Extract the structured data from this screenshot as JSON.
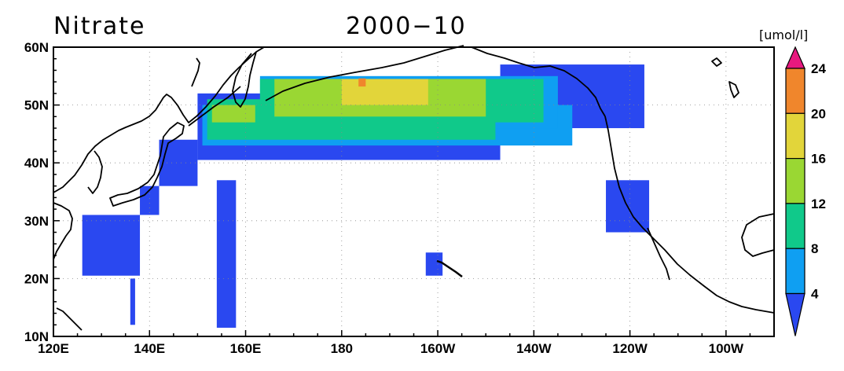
{
  "title": {
    "variable": "Nitrate",
    "date": "2000−10",
    "unit": "[umol/l]"
  },
  "colors": {
    "level_0_4": "#2a48f0",
    "level_4_8": "#0f9ff2",
    "level_8_12": "#10c98a",
    "level_12_16": "#9ad733",
    "level_16_20": "#e2d53a",
    "level_20_24": "#f0862c",
    "level_24_up": "#e8197f",
    "coastline": "#000000"
  },
  "chart_data": {
    "type": "heatmap",
    "title": "Nitrate 2000−10",
    "colorbar_label": "[umol/l]",
    "colorbar_ticks": [
      "4",
      "8",
      "12",
      "16",
      "20",
      "24"
    ],
    "colorbar_levels": [
      4,
      8,
      12,
      16,
      20,
      24
    ],
    "x_ticks": [
      "120E",
      "140E",
      "160E",
      "180",
      "160W",
      "140W",
      "120W",
      "100W"
    ],
    "y_ticks": [
      "10N",
      "20N",
      "30N",
      "40N",
      "50N",
      "60N"
    ],
    "lon_range": [
      120,
      270
    ],
    "lat_range": [
      10,
      60
    ],
    "lon_ticks": [
      120,
      140,
      160,
      180,
      200,
      220,
      240,
      260
    ],
    "lat_ticks": [
      10,
      20,
      30,
      40,
      50,
      60
    ],
    "grid": true,
    "regions": [
      {
        "level": 1,
        "lon": [
          150,
          213
        ],
        "lat": [
          40.5,
          52
        ]
      },
      {
        "level": 1,
        "lon": [
          213,
          243
        ],
        "lat": [
          46,
          57
        ]
      },
      {
        "level": 1,
        "lon": [
          142,
          150
        ],
        "lat": [
          36,
          44
        ]
      },
      {
        "level": 1,
        "lon": [
          138,
          142
        ],
        "lat": [
          31,
          36
        ]
      },
      {
        "level": 1,
        "lon": [
          126,
          138
        ],
        "lat": [
          20.5,
          31
        ]
      },
      {
        "level": 1,
        "lon": [
          136,
          137
        ],
        "lat": [
          12,
          20
        ]
      },
      {
        "level": 1,
        "lon": [
          154,
          158
        ],
        "lat": [
          11.5,
          37
        ]
      },
      {
        "level": 1,
        "lon": [
          197.5,
          201
        ],
        "lat": [
          20.5,
          24.5
        ]
      },
      {
        "level": 1,
        "lon": [
          235,
          244
        ],
        "lat": [
          28,
          37
        ]
      },
      {
        "level": 2,
        "lon": [
          151,
          228
        ],
        "lat": [
          43,
          50
        ]
      },
      {
        "level": 2,
        "lon": [
          163,
          225
        ],
        "lat": [
          46,
          55
        ]
      },
      {
        "level": 3,
        "lon": [
          152,
          212
        ],
        "lat": [
          44,
          51
        ]
      },
      {
        "level": 3,
        "lon": [
          163,
          222
        ],
        "lat": [
          47,
          54.5
        ]
      },
      {
        "level": 4,
        "lon": [
          153,
          162
        ],
        "lat": [
          47,
          50
        ]
      },
      {
        "level": 4,
        "lon": [
          166,
          210
        ],
        "lat": [
          48,
          54.5
        ]
      },
      {
        "level": 5,
        "lon": [
          180,
          198
        ],
        "lat": [
          50,
          54.5
        ]
      },
      {
        "level": 6,
        "lon": [
          183.5,
          185
        ],
        "lat": [
          53.2,
          54.6
        ]
      }
    ]
  }
}
